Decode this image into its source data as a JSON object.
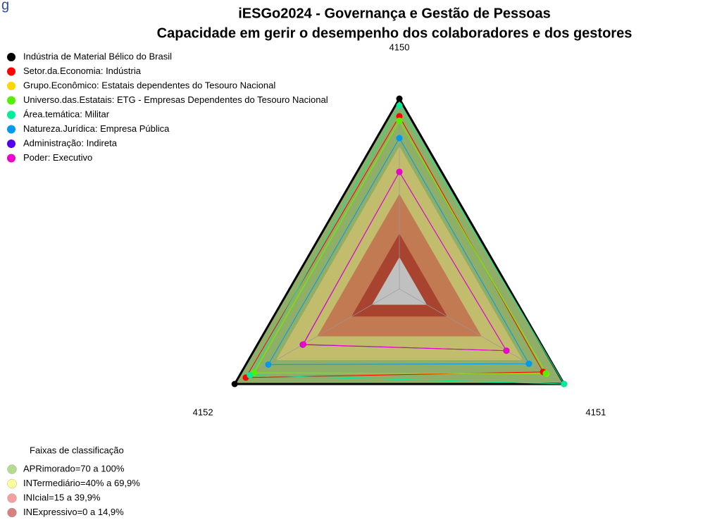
{
  "page_heading": "g",
  "chart_data": {
    "type": "radar",
    "title": "iESGo2024 - Governança e Gestão de Pessoas",
    "subtitle": "Capacidade em gerir o desempenho dos colaboradores e dos gestores",
    "categories": [
      "4150",
      "4151",
      "4152"
    ],
    "ylim": [
      -20,
      100
    ],
    "series": [
      {
        "name": "Indústria de Material Bélico do Brasil",
        "color": "#000000",
        "values": [
          100,
          100,
          100
        ]
      },
      {
        "name": "Setor.da.Economia: Indústria",
        "color": "#ff0000",
        "values": [
          88.9,
          84.7,
          91.9
        ]
      },
      {
        "name": "Grupo.Econômico: Estatais dependentes do Tesouro Nacional",
        "color": "#ffd700",
        "values": [
          86,
          87,
          86
        ]
      },
      {
        "name": "Universo.das.Estatais: ETG - Empresas Dependentes do Tesouro Nacional",
        "color": "#55ee00",
        "values": [
          85.8,
          86.7,
          85.8
        ]
      },
      {
        "name": "Área.temática: Militar",
        "color": "#00ee99",
        "values": [
          95.6,
          100,
          88.9
        ]
      },
      {
        "name": "Natureza.Jurídica: Empresa Pública",
        "color": "#0099ee",
        "values": [
          75.1,
          74.4,
          75.5
        ]
      },
      {
        "name": "Administração: Indireta",
        "color": "#5500ee",
        "values": [
          53.8,
          58,
          50.3
        ]
      },
      {
        "name": "Poder: Executivo",
        "color": "#ee00cc",
        "values": [
          53.8,
          58,
          50
        ]
      }
    ],
    "bands_title": "Faixas de classificação",
    "bands": [
      {
        "label": "APRimorado=70 a 100%",
        "max": 100,
        "color": "#b5dc8c",
        "fill_color": "#8fae68"
      },
      {
        "label": "INTermediário=40% a 69,9%",
        "max": 69.9,
        "color": "#ffff99",
        "fill_color": "#c2bd6c"
      },
      {
        "label": "INIcial=15 a 39,9%",
        "max": 39.9,
        "color": "#f4a0a0",
        "fill_color": "#c27a52"
      },
      {
        "label": "INExpressivo=0 a 14,9%",
        "max": 14.9,
        "color": "#d88080",
        "fill_color": "#a8432f"
      }
    ]
  }
}
